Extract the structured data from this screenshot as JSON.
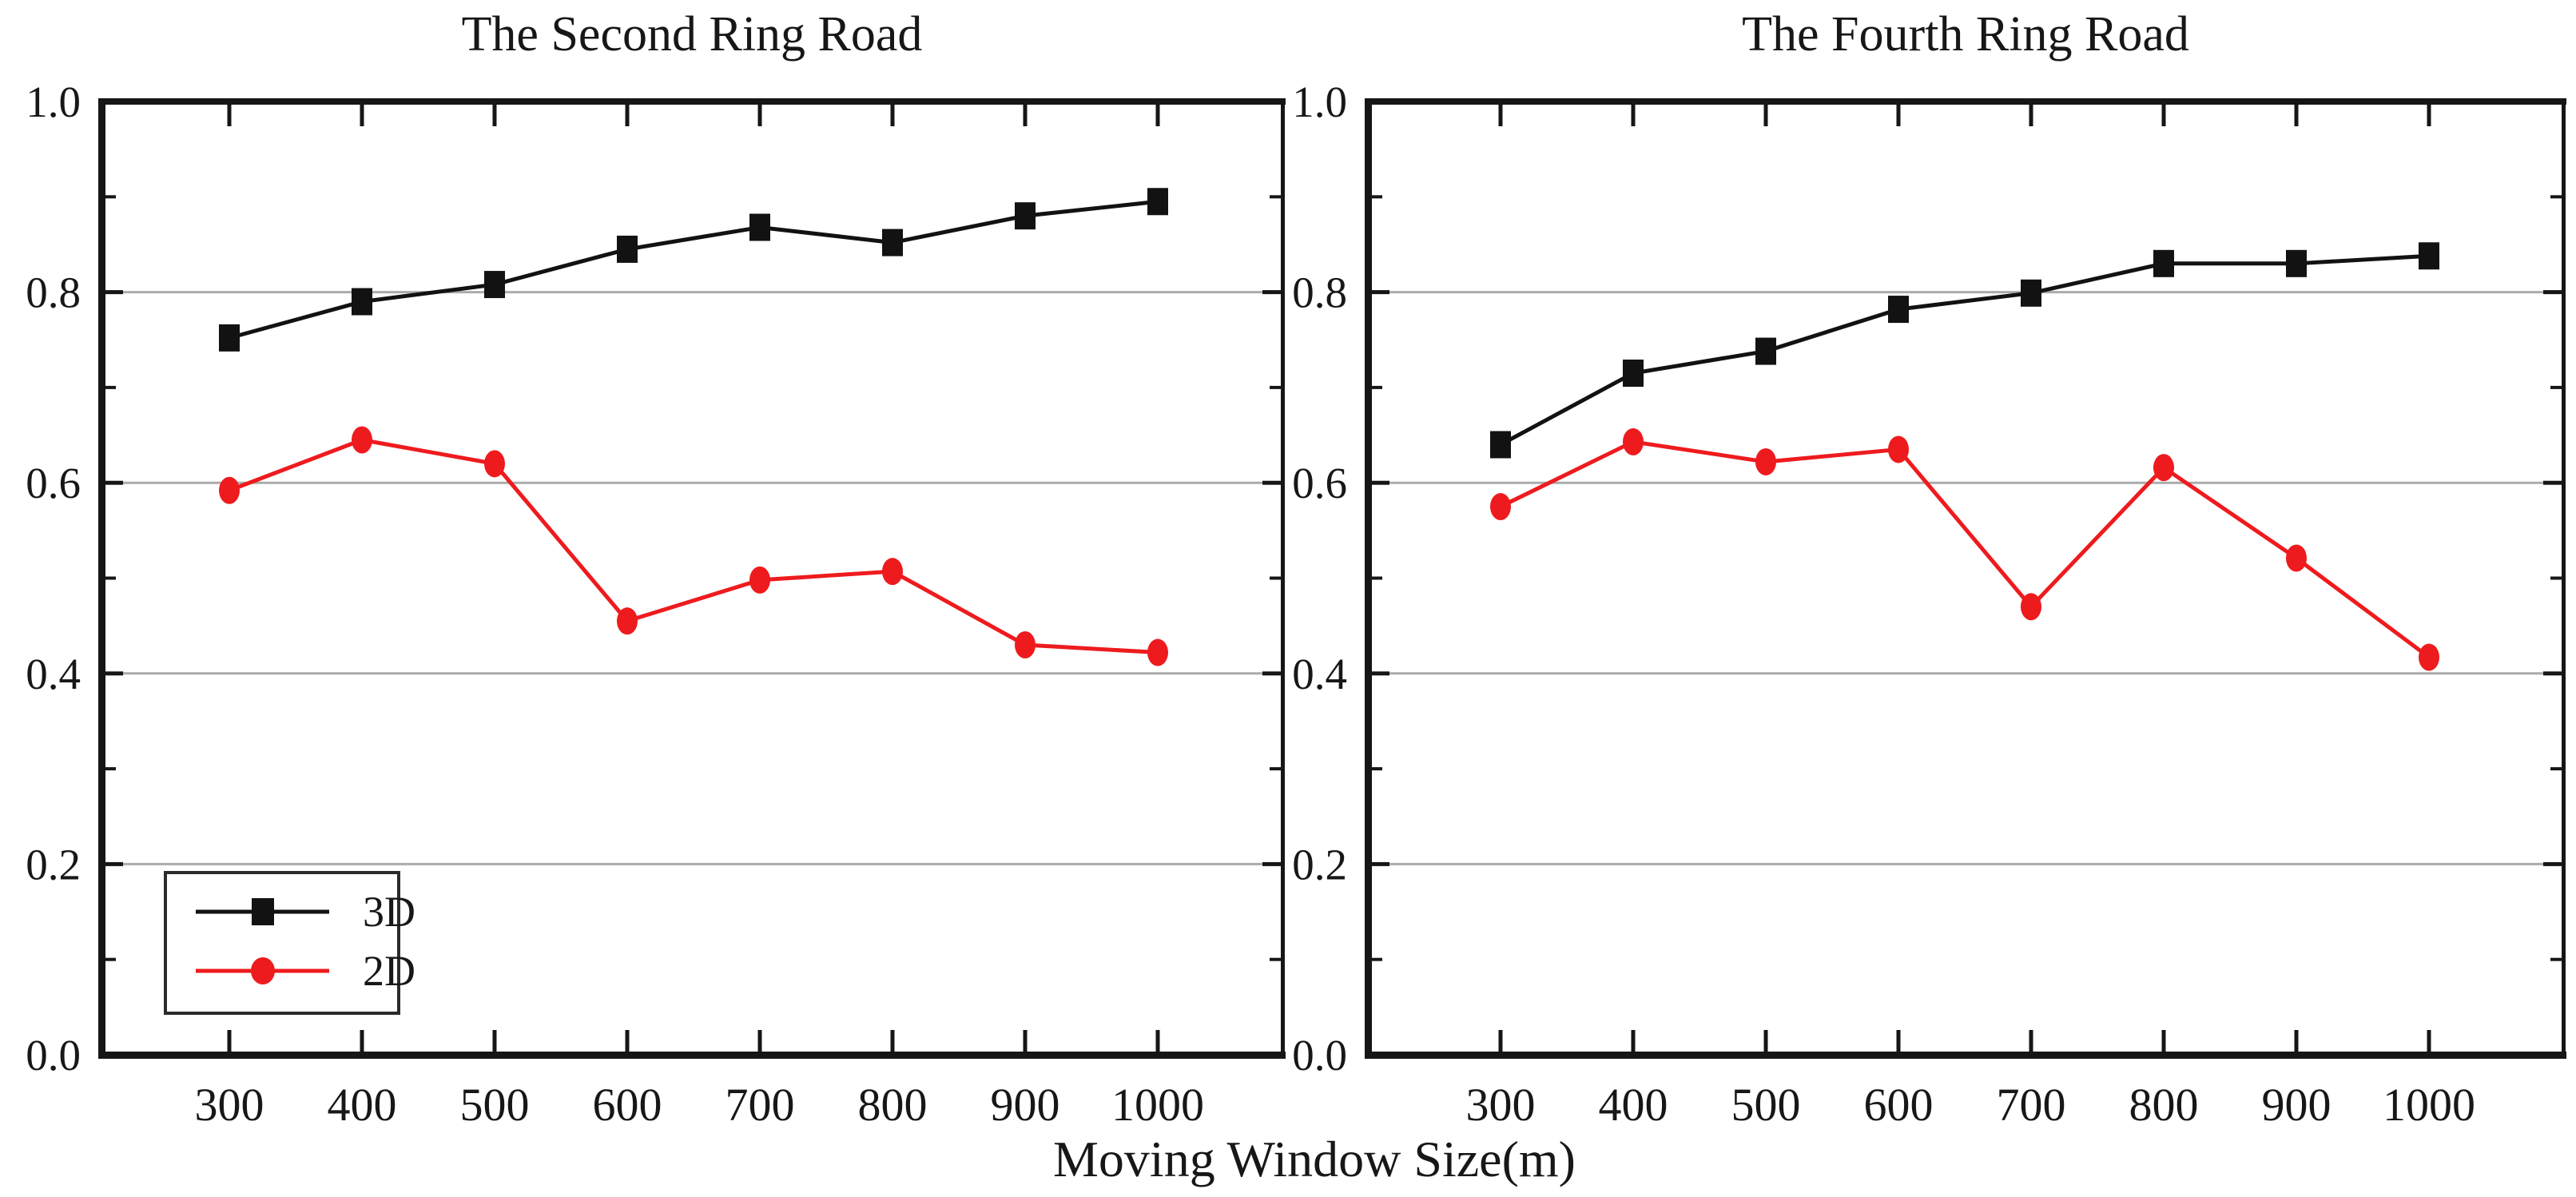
{
  "figure": {
    "x_axis_label": "Moving Window Size(m)",
    "background": "#ffffff",
    "colors": {
      "axis": "#161616",
      "grid": "#ababab",
      "series_3d": "#121212",
      "series_2d": "#ee1b1e",
      "text": "#171717"
    }
  },
  "legend": {
    "items": [
      {
        "label": "3D",
        "color": "#121212",
        "marker": "square"
      },
      {
        "label": "2D",
        "color": "#ee1b1e",
        "marker": "circle"
      }
    ]
  },
  "chart_data": [
    {
      "type": "line",
      "title": "The Second Ring Road",
      "xlabel": "Moving Window Size(m)",
      "x": [
        300,
        400,
        500,
        600,
        700,
        800,
        900,
        1000
      ],
      "ylim": [
        0.0,
        1.0
      ],
      "yticks_major": [
        0.0,
        0.2,
        0.4,
        0.6,
        0.8,
        1.0
      ],
      "yticks_minor": [
        0.1,
        0.3,
        0.5,
        0.7,
        0.9
      ],
      "ytick_labels": [
        "0.0",
        "0.2",
        "0.4",
        "0.6",
        "0.8",
        "1.0"
      ],
      "grid": "horizontal",
      "legend_position": "lower-left",
      "series": [
        {
          "name": "3D",
          "marker": "square",
          "color": "#121212",
          "values": [
            0.752,
            0.79,
            0.808,
            0.845,
            0.868,
            0.852,
            0.88,
            0.895
          ]
        },
        {
          "name": "2D",
          "marker": "circle",
          "color": "#ee1b1e",
          "values": [
            0.592,
            0.645,
            0.62,
            0.455,
            0.498,
            0.507,
            0.43,
            0.422
          ]
        }
      ]
    },
    {
      "type": "line",
      "title": "The Fourth Ring Road",
      "xlabel": "Moving Window Size(m)",
      "x": [
        300,
        400,
        500,
        600,
        700,
        800,
        900,
        1000
      ],
      "ylim": [
        0.0,
        1.0
      ],
      "yticks_major": [
        0.0,
        0.2,
        0.4,
        0.6,
        0.8,
        1.0
      ],
      "yticks_minor": [
        0.1,
        0.3,
        0.5,
        0.7,
        0.9
      ],
      "ytick_labels": [
        "0.0",
        "0.2",
        "0.4",
        "0.6",
        "0.8",
        "1.0"
      ],
      "grid": "horizontal",
      "series": [
        {
          "name": "3D",
          "marker": "square",
          "color": "#121212",
          "values": [
            0.64,
            0.715,
            0.738,
            0.782,
            0.799,
            0.83,
            0.83,
            0.838
          ]
        },
        {
          "name": "2D",
          "marker": "circle",
          "color": "#ee1b1e",
          "values": [
            0.575,
            0.643,
            0.622,
            0.635,
            0.47,
            0.616,
            0.521,
            0.417
          ]
        }
      ]
    }
  ]
}
